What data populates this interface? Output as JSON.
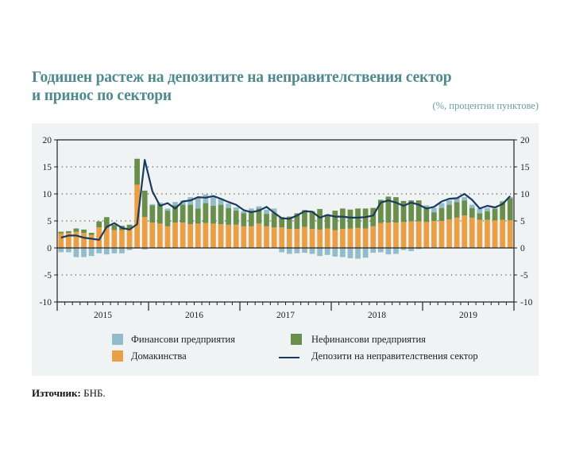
{
  "title_line1": "Годишен растеж на депозитите на неправителствения сектор",
  "title_line2": "и принос по сектори",
  "unit_note": "(%, процентни пунктове)",
  "source_label": "Източник:",
  "source_value": "БНБ.",
  "colors": {
    "financial": "#93bccb",
    "households": "#eb9f45",
    "nonfinancial": "#6a8f4c",
    "total_line": "#1c3a5e",
    "panel": "#eff3f3"
  },
  "chart_data": {
    "type": "bar",
    "stacked": true,
    "title": "Годишен растеж на депозитите на неправителствения сектор и принос по сектори",
    "subtitle": "(%, процентни пунктове)",
    "xlabel": "",
    "ylabel": "",
    "ylim": [
      -10,
      20
    ],
    "yticks": [
      -10,
      -5,
      0,
      5,
      10,
      15,
      20
    ],
    "y2ticks": [
      -10,
      -5,
      0,
      5,
      10,
      15,
      20
    ],
    "grid": "horizontal dotted",
    "year_labels": [
      "2015",
      "2016",
      "2017",
      "2018",
      "2019"
    ],
    "months_per_year": 12,
    "legend_position": "bottom",
    "legend": [
      "Финансови предприятия",
      "Нефинансови предприятия",
      "Домакинства",
      "Депозити на неправителствения сектор"
    ],
    "series": [
      {
        "name": "Домакинства",
        "kind": "bar",
        "values": [
          2.7,
          2.8,
          3.0,
          2.8,
          2.4,
          3.8,
          3.7,
          3.3,
          3.3,
          3.6,
          11.7,
          5.7,
          4.7,
          4.5,
          4.0,
          4.7,
          4.7,
          4.4,
          4.5,
          4.6,
          4.5,
          4.4,
          4.3,
          4.3,
          4.0,
          4.0,
          4.5,
          4.0,
          3.8,
          3.8,
          3.5,
          3.5,
          3.9,
          3.5,
          3.4,
          3.6,
          3.3,
          3.5,
          3.6,
          3.7,
          3.6,
          4.0,
          4.6,
          4.7,
          4.7,
          4.8,
          4.9,
          4.9,
          4.8,
          5.0,
          5.0,
          5.3,
          5.6,
          6.0,
          5.6,
          5.2,
          5.2,
          5.1,
          5.2,
          5.1
        ]
      },
      {
        "name": "Нефинансови предприятия",
        "kind": "bar",
        "values": [
          0.3,
          0.3,
          0.6,
          0.6,
          0.4,
          1.1,
          2.0,
          1.0,
          0.8,
          0.7,
          4.8,
          4.9,
          3.2,
          3.6,
          2.9,
          3.2,
          3.3,
          3.6,
          2.8,
          3.7,
          3.3,
          3.6,
          3.1,
          2.6,
          2.4,
          2.9,
          2.8,
          2.3,
          2.6,
          1.9,
          2.3,
          2.9,
          3.1,
          3.3,
          3.8,
          2.6,
          3.6,
          3.8,
          3.5,
          3.6,
          3.7,
          3.4,
          4.3,
          4.8,
          4.7,
          3.9,
          3.9,
          3.9,
          2.8,
          1.6,
          2.4,
          2.7,
          2.9,
          2.8,
          1.8,
          1.2,
          1.6,
          2.1,
          3.3,
          4.1
        ]
      },
      {
        "name": "Финансови предприятия",
        "kind": "bar",
        "values": [
          -0.8,
          -0.8,
          -1.7,
          -1.7,
          -1.5,
          -1.0,
          -1.2,
          -1.0,
          -1.0,
          -0.4,
          -0.1,
          -0.3,
          0.2,
          0.3,
          0.4,
          0.6,
          0.8,
          1.4,
          2.0,
          1.6,
          1.7,
          1.1,
          0.8,
          0.6,
          0.4,
          0.4,
          0.4,
          0.8,
          0.9,
          -0.8,
          -1.1,
          -1.0,
          -0.9,
          -1.1,
          -1.5,
          -1.3,
          -1.6,
          -1.7,
          -1.9,
          -2.0,
          -1.8,
          -0.9,
          -0.8,
          -1.2,
          -1.1,
          -0.4,
          -0.6,
          -0.2,
          0.3,
          0.8,
          0.9,
          0.8,
          0.8,
          0.6,
          0.6,
          0.9,
          0.6,
          0.4,
          0.2,
          0.2
        ]
      },
      {
        "name": "Депозити на неправителствения сектор",
        "kind": "line",
        "values": [
          1.9,
          2.3,
          2.3,
          1.9,
          1.7,
          1.5,
          3.9,
          4.6,
          3.7,
          3.4,
          4.4,
          16.3,
          10.5,
          7.8,
          8.3,
          7.3,
          8.6,
          8.8,
          9.4,
          9.3,
          9.6,
          9.1,
          8.5,
          8.0,
          7.0,
          6.6,
          6.9,
          7.6,
          6.5,
          5.5,
          5.4,
          6.0,
          6.8,
          6.7,
          5.6,
          6.1,
          5.8,
          5.8,
          5.6,
          5.6,
          5.7,
          6.0,
          8.4,
          8.8,
          8.4,
          7.8,
          8.4,
          8.0,
          7.3,
          7.6,
          8.6,
          9.1,
          9.2,
          10.0,
          8.9,
          7.3,
          7.8,
          7.5,
          8.1,
          9.6
        ]
      }
    ]
  }
}
